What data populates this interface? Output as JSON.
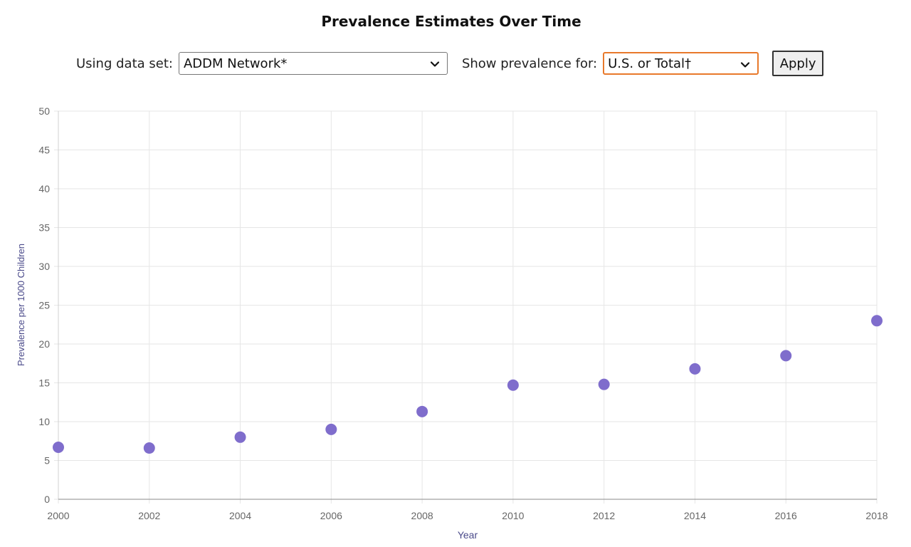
{
  "header": {
    "title": "Prevalence Estimates Over Time"
  },
  "controls": {
    "dataset_label": "Using data set:",
    "dataset_value": "ADDM Network*",
    "region_label": "Show prevalence for:",
    "region_value": "U.S. or Total†",
    "apply_label": "Apply"
  },
  "colors": {
    "marker": "#7f6dcc",
    "axis_title": "#4a4a8a",
    "tick_label": "#666666",
    "grid": "#e6e6e6",
    "focus_border": "#e8792b"
  },
  "chart_data": {
    "type": "scatter",
    "title": "",
    "xlabel": "Year",
    "ylabel": "Prevalence per 1000 Children",
    "xlim": [
      2000,
      2018
    ],
    "ylim": [
      0,
      50
    ],
    "x_ticks": [
      "2000",
      "2002",
      "2004",
      "2006",
      "2008",
      "2010",
      "2012",
      "2014",
      "2016",
      "2018"
    ],
    "y_ticks": [
      "0",
      "5",
      "10",
      "15",
      "20",
      "25",
      "30",
      "35",
      "40",
      "45",
      "50"
    ],
    "grid": true,
    "legend": false,
    "series": [
      {
        "x": [
          2000,
          2002,
          2004,
          2006,
          2008,
          2010,
          2012,
          2014,
          2016,
          2018
        ],
        "y": [
          6.7,
          6.6,
          8.0,
          9.0,
          11.3,
          14.7,
          14.8,
          16.8,
          18.5,
          23.0
        ]
      }
    ]
  }
}
